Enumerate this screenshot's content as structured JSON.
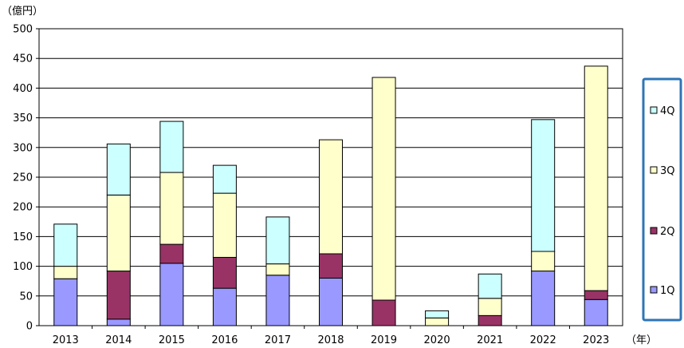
{
  "chart_data": {
    "type": "bar",
    "stacked": true,
    "y_unit_label": "（億円）",
    "x_unit_label": "（年）",
    "categories": [
      "2013",
      "2014",
      "2015",
      "2016",
      "2017",
      "2018",
      "2019",
      "2020",
      "2021",
      "2022",
      "2023"
    ],
    "ylim": [
      0,
      500
    ],
    "yticks": [
      0,
      50,
      100,
      150,
      200,
      250,
      300,
      350,
      400,
      450,
      500
    ],
    "ytick_labels": [
      "0",
      "50",
      "100",
      "150",
      "200",
      "250",
      "300",
      "350",
      "400",
      "450",
      "500"
    ],
    "grid": true,
    "legend_position": "right",
    "series": [
      {
        "name": "1Q",
        "color": "#9999ff",
        "values": [
          79,
          11,
          105,
          63,
          85,
          80,
          0,
          0,
          0,
          92,
          44
        ]
      },
      {
        "name": "2Q",
        "color": "#993366",
        "values": [
          0,
          81,
          32,
          52,
          0,
          41,
          43,
          0,
          17,
          0,
          15
        ]
      },
      {
        "name": "3Q",
        "color": "#ffffcc",
        "values": [
          21,
          128,
          121,
          108,
          19,
          192,
          375,
          13,
          29,
          33,
          378
        ]
      },
      {
        "name": "4Q",
        "color": "#ccffff",
        "values": [
          71,
          86,
          86,
          47,
          79,
          0,
          0,
          12,
          41,
          222,
          0
        ]
      }
    ],
    "legend_order": [
      "4Q",
      "3Q",
      "2Q",
      "1Q"
    ],
    "legend_border_color": "#2e75b6"
  }
}
